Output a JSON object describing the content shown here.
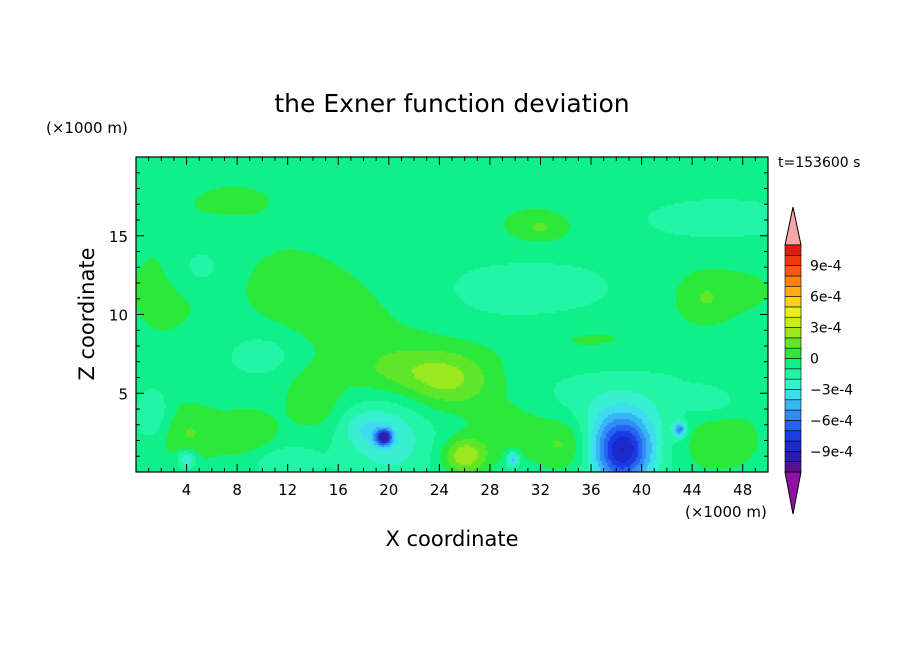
{
  "chart_data": {
    "type": "heatmap",
    "title": "the Exner function deviation",
    "xlabel": "X coordinate",
    "ylabel": "Z coordinate",
    "x_unit": "(×1000 m)",
    "y_unit": "(×1000 m)",
    "time_label": "t=153600 s",
    "xlim": [
      0,
      50
    ],
    "ylim": [
      0,
      20
    ],
    "x_ticks": [
      4,
      8,
      12,
      16,
      20,
      24,
      28,
      32,
      36,
      40,
      44,
      48
    ],
    "x_tick_labels": [
      "4",
      "8",
      "12",
      "16",
      "20",
      "24",
      "28",
      "32",
      "36",
      "40",
      "44",
      "48"
    ],
    "y_ticks": [
      5,
      10,
      15
    ],
    "y_tick_labels": [
      "5",
      "10",
      "15"
    ],
    "colorbar": {
      "levels": [
        -0.0011,
        -0.001,
        -0.0009,
        -0.0008,
        -0.0007,
        -0.0006,
        -0.0005,
        -0.0004,
        -0.0003,
        -0.0002,
        -0.0001,
        0,
        0.0001,
        0.0002,
        0.0003,
        0.0004,
        0.0005,
        0.0006,
        0.0007,
        0.0008,
        0.0009,
        0.001,
        0.0011
      ],
      "colors": [
        "#5a0d8e",
        "#2a1ca8",
        "#1a2acb",
        "#1a3ce6",
        "#2563f0",
        "#2f8ef5",
        "#38b6f4",
        "#3fdcf0",
        "#36f0d0",
        "#23f5a6",
        "#10f08a",
        "#2be83a",
        "#5fe628",
        "#9ae81f",
        "#c9ec1b",
        "#e8f01a",
        "#f8d21c",
        "#ffac18",
        "#ff8212",
        "#f5580f",
        "#eb3a0d",
        "#dd1e0d"
      ],
      "over_color": "#f5a6a6",
      "under_color": "#8f0fa8",
      "tick_labels": [
        "9e-4",
        "6e-4",
        "3e-4",
        "0",
        "−3e-4",
        "−6e-4",
        "−9e-4"
      ],
      "tick_values": [
        0.0009,
        0.0006,
        0.0003,
        0,
        -0.0003,
        -0.0006,
        -0.0009
      ]
    },
    "field": {
      "background": -8e-05,
      "features": [
        {
          "x": 8,
          "z": 17.5,
          "sx": 4.5,
          "sz": 1.6,
          "v": 8e-05
        },
        {
          "x": 2,
          "z": 11.5,
          "sx": 3.0,
          "sz": 3.5,
          "v": 0.0001
        },
        {
          "x": 12,
          "z": 12.0,
          "sx": 4.0,
          "sz": 2.6,
          "v": 9e-05
        },
        {
          "x": 18,
          "z": 9.0,
          "sx": 5.0,
          "sz": 3.0,
          "v": 8e-05
        },
        {
          "x": 31,
          "z": 16.0,
          "sx": 5.0,
          "sz": 1.8,
          "v": 8e-05
        },
        {
          "x": 32,
          "z": 15.5,
          "sx": 1.2,
          "sz": 0.5,
          "v": 0.00012
        },
        {
          "x": 47,
          "z": 11.5,
          "sx": 4.5,
          "sz": 1.8,
          "v": 0.0001
        },
        {
          "x": 45,
          "z": 11.0,
          "sx": 1.2,
          "sz": 0.9,
          "v": 0.0001
        },
        {
          "x": 36,
          "z": 8.3,
          "sx": 5.5,
          "sz": 1.3,
          "v": 9e-05
        },
        {
          "x": 5,
          "z": 13.0,
          "sx": 1.5,
          "sz": 1.0,
          "v": -0.00012
        },
        {
          "x": 31,
          "z": 11.6,
          "sx": 4.0,
          "sz": 1.2,
          "v": -0.00012
        },
        {
          "x": 46,
          "z": 16.0,
          "sx": 3.5,
          "sz": 0.7,
          "v": -0.00012
        },
        {
          "x": 25,
          "z": 5.8,
          "sx": 2.5,
          "sz": 1.3,
          "v": 0.00025
        },
        {
          "x": 21,
          "z": 6.5,
          "sx": 3.0,
          "sz": 1.2,
          "v": 0.00015
        },
        {
          "x": 4,
          "z": 2.5,
          "sx": 2.0,
          "sz": 1.4,
          "v": 0.00018
        },
        {
          "x": 9,
          "z": 2.2,
          "sx": 1.8,
          "sz": 1.4,
          "v": 0.00016
        },
        {
          "x": 14,
          "z": 4.5,
          "sx": 1.5,
          "sz": 1.3,
          "v": 0.00015
        },
        {
          "x": 26,
          "z": 1.0,
          "sx": 1.2,
          "sz": 0.8,
          "v": 0.00035
        },
        {
          "x": 30,
          "z": 2.5,
          "sx": 2.5,
          "sz": 1.5,
          "v": 0.00015
        },
        {
          "x": 34,
          "z": 1.8,
          "sx": 1.5,
          "sz": 1.3,
          "v": 0.0002
        },
        {
          "x": 46,
          "z": 2.0,
          "sx": 2.5,
          "sz": 1.5,
          "v": 0.00018
        },
        {
          "x": 48,
          "z": 6.0,
          "sx": 2.0,
          "sz": 1.5,
          "v": 8e-05
        },
        {
          "x": 20,
          "z": 2.2,
          "sx": 2.2,
          "sz": 1.8,
          "v": -0.0002
        },
        {
          "x": 19.6,
          "z": 2.2,
          "sx": 0.45,
          "sz": 0.35,
          "v": -0.00075
        },
        {
          "x": 38.5,
          "z": 1.3,
          "sx": 1.6,
          "sz": 1.5,
          "v": -0.00075
        },
        {
          "x": 38,
          "z": 3.5,
          "sx": 4.0,
          "sz": 2.0,
          "v": -0.00014
        },
        {
          "x": 43,
          "z": 2.7,
          "sx": 0.35,
          "sz": 0.35,
          "v": -0.0005
        },
        {
          "x": 29.8,
          "z": 0.8,
          "sx": 0.35,
          "sz": 0.35,
          "v": -0.0004
        },
        {
          "x": 4,
          "z": 0.8,
          "sx": 0.5,
          "sz": 0.4,
          "v": -0.0003
        },
        {
          "x": 1.5,
          "z": 3.5,
          "sx": 1.0,
          "sz": 1.2,
          "v": -0.00015
        },
        {
          "x": 11,
          "z": 0.8,
          "sx": 2.0,
          "sz": 0.7,
          "v": -0.00013
        },
        {
          "x": 46,
          "z": 4.5,
          "sx": 1.5,
          "sz": 0.8,
          "v": -0.00012
        },
        {
          "x": 10,
          "z": 7.5,
          "sx": 1.8,
          "sz": 0.9,
          "v": -0.00012
        },
        {
          "x": 18,
          "z": 2.8,
          "sx": 1.3,
          "sz": 0.8,
          "v": -0.00012
        }
      ]
    }
  }
}
